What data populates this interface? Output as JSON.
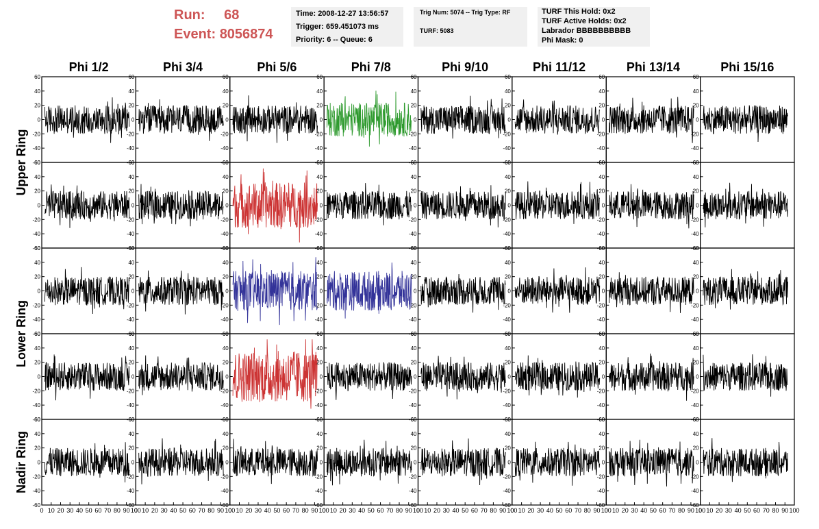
{
  "header": {
    "run_label": "Run:",
    "run_value": "68",
    "event_label": "Event:",
    "event_value": "8056874"
  },
  "info_boxes": {
    "time_box": {
      "time": "Time: 2008-12-27 13:56:57",
      "trigger": "Trigger: 659.451073 ms",
      "priority": "Priority: 6 -- Queue: 6"
    },
    "trig_box": {
      "trig_line": "Trig Num: 5074 -- Trig Type: RF",
      "turf": "TURF: 5083"
    },
    "turf_box": {
      "this_hold": "TURF This Hold: 0x2",
      "active_holds": "TURF Active Holds: 0x2",
      "labrador": "Labrador BBBBBBBBBB",
      "phi_mask": "Phi Mask: 0"
    }
  },
  "colors": {
    "normal": "#000000",
    "green": "#2e9a2e",
    "red": "#cc3333",
    "blue": "#333399"
  },
  "chart_data": {
    "type": "line",
    "columns": [
      "Phi 1/2",
      "Phi 3/4",
      "Phi 5/6",
      "Phi 7/8",
      "Phi 9/10",
      "Phi 11/12",
      "Phi 13/14",
      "Phi 15/16"
    ],
    "row_labels": [
      "Upper Ring",
      "Lower Ring",
      "Nadir Ring"
    ],
    "rows": 5,
    "ylim": [
      -60,
      60
    ],
    "xlim": [
      0,
      100
    ],
    "yticks": [
      "-60",
      "-40",
      "-20",
      "0",
      "20",
      "40",
      "60"
    ],
    "xticks": [
      "0",
      "10",
      "20",
      "30",
      "40",
      "50",
      "60",
      "70",
      "80",
      "90",
      "100"
    ],
    "highlights": [
      {
        "row": 0,
        "col": 3,
        "color": "green",
        "amplitude": 30
      },
      {
        "row": 1,
        "col": 2,
        "color": "red",
        "amplitude": 40
      },
      {
        "row": 2,
        "col": 2,
        "color": "blue",
        "amplitude": 35
      },
      {
        "row": 2,
        "col": 3,
        "color": "blue",
        "amplitude": 35
      },
      {
        "row": 3,
        "col": 2,
        "color": "red",
        "amplitude": 45
      }
    ],
    "normal_amplitude": 25,
    "samples_per_trace": 260
  }
}
